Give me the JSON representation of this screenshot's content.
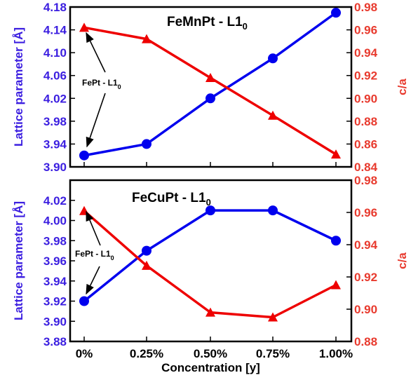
{
  "chart_data": [
    {
      "type": "line",
      "title": "FeMnPt - L1",
      "title_subscript": "0",
      "annotation": {
        "text": "FePt - L1",
        "subscript": "0"
      },
      "categories": [
        "0%",
        "0.25%",
        "0.50%",
        "0.75%",
        "1.00%"
      ],
      "ylabel_left": "Lattice parameter [Å]",
      "ylabel_right": "c/a",
      "ylim_left": [
        3.9,
        4.18
      ],
      "yticks_left": [
        "3.90",
        "3.94",
        "3.98",
        "4.02",
        "4.06",
        "4.10",
        "4.14",
        "4.18"
      ],
      "ylim_right": [
        0.84,
        0.98
      ],
      "yticks_right": [
        "0.84",
        "0.86",
        "0.88",
        "0.90",
        "0.92",
        "0.94",
        "0.96",
        "0.98"
      ],
      "series": [
        {
          "axis": "left",
          "marker": "circle",
          "color": "#0000ee",
          "values": [
            3.92,
            3.94,
            4.02,
            4.09,
            4.17
          ]
        },
        {
          "axis": "right",
          "marker": "triangle",
          "color": "#ee0000",
          "values": [
            0.962,
            0.952,
            0.918,
            0.885,
            0.851
          ]
        }
      ]
    },
    {
      "type": "line",
      "title": "FeCuPt - L1",
      "title_subscript": "0",
      "annotation": {
        "text": "FePt - L1",
        "subscript": "0"
      },
      "categories": [
        "0%",
        "0.25%",
        "0.50%",
        "0.75%",
        "1.00%"
      ],
      "xlabel": "Concentration [y]",
      "ylabel_left": "Lattice parameter [Å]",
      "ylabel_right": "c/a",
      "ylim_left": [
        3.88,
        4.04
      ],
      "yticks_left": [
        "3.88",
        "3.90",
        "3.92",
        "3.94",
        "3.96",
        "3.98",
        "4.00",
        "4.02"
      ],
      "ylim_right": [
        0.88,
        0.98
      ],
      "yticks_right": [
        "0.88",
        "0.90",
        "0.92",
        "0.94",
        "0.96",
        "0.98"
      ],
      "series": [
        {
          "axis": "left",
          "marker": "circle",
          "color": "#0000ee",
          "values": [
            3.92,
            3.97,
            4.01,
            4.01,
            3.98
          ]
        },
        {
          "axis": "right",
          "marker": "triangle",
          "color": "#ee0000",
          "values": [
            0.961,
            0.927,
            0.898,
            0.895,
            0.915
          ]
        }
      ]
    }
  ],
  "colors": {
    "left_axis": "#3b1ee0",
    "right_axis": "#e83a2e",
    "frame": "#000000"
  }
}
